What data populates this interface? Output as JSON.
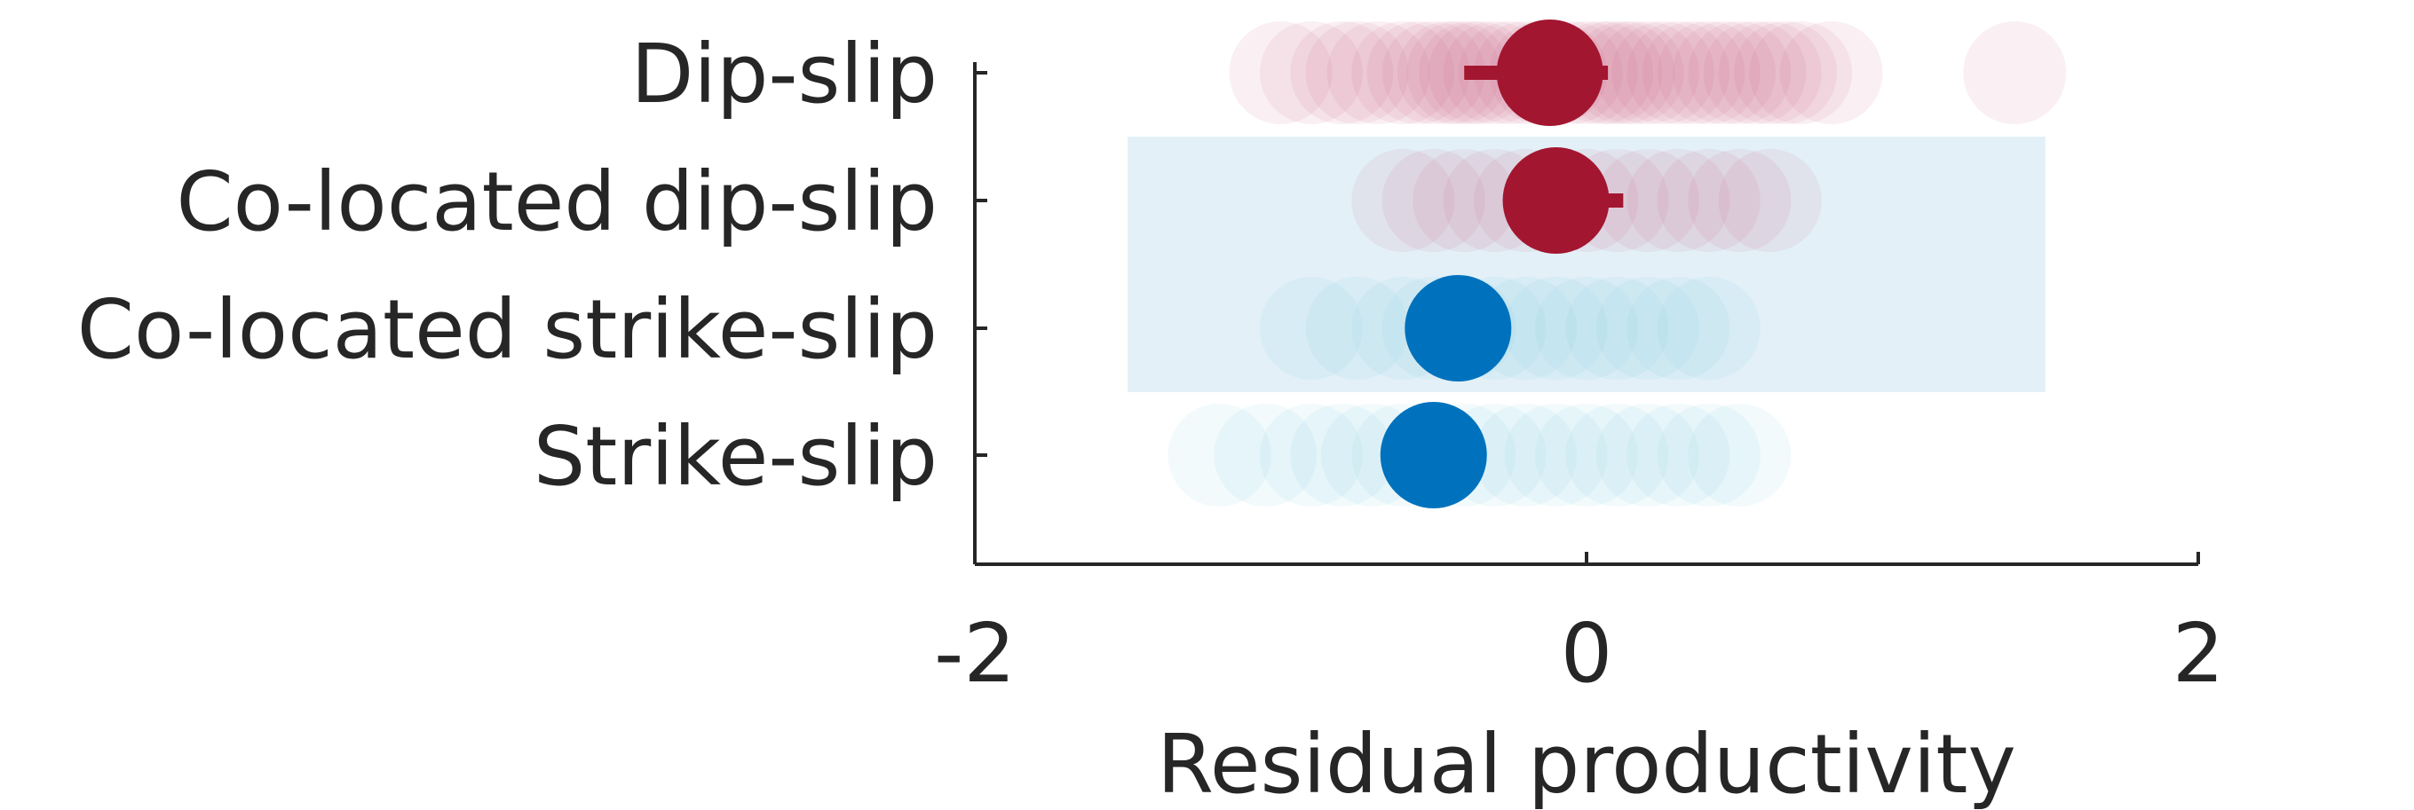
{
  "chart_data": {
    "type": "scatter",
    "xlabel": "Residual productivity",
    "xlim": [
      -2,
      2
    ],
    "xticks": [
      -2,
      0,
      2
    ],
    "categories": [
      "Dip-slip",
      "Co-located dip-slip",
      "Co-located strike-slip",
      "Strike-slip"
    ],
    "highlight_band": {
      "categories": [
        "Co-located dip-slip",
        "Co-located strike-slip"
      ],
      "x_range": [
        -1.5,
        1.5
      ],
      "color": "#e3f0f8"
    },
    "colors": {
      "dip": "#a31630",
      "strike": "#0072bd",
      "dip_faint": "#c9577a",
      "strike_faint": "#74c4e0",
      "axis": "#262626"
    },
    "series": [
      {
        "category": "Dip-slip",
        "color_key": "dip",
        "mean": -0.12,
        "ci": [
          -0.4,
          0.07
        ],
        "points": [
          -1.0,
          -0.9,
          -0.8,
          -0.75,
          -0.68,
          -0.6,
          -0.55,
          -0.5,
          -0.45,
          -0.42,
          -0.38,
          -0.35,
          -0.3,
          -0.25,
          -0.2,
          -0.15,
          -0.1,
          -0.05,
          0.0,
          0.05,
          0.08,
          0.12,
          0.15,
          0.2,
          0.25,
          0.3,
          0.35,
          0.4,
          0.45,
          0.5,
          0.55,
          0.6,
          0.65,
          0.7,
          0.8,
          1.4
        ]
      },
      {
        "category": "Co-located dip-slip",
        "color_key": "dip",
        "mean": -0.1,
        "ci": [
          -0.1,
          0.12
        ],
        "points": [
          -0.6,
          -0.5,
          -0.4,
          -0.3,
          -0.2,
          -0.1,
          0.0,
          0.1,
          0.2,
          0.3,
          0.4,
          0.5,
          0.6
        ]
      },
      {
        "category": "Co-located strike-slip",
        "color_key": "strike",
        "mean": -0.42,
        "ci": [
          -0.58,
          -0.42
        ],
        "points": [
          -0.9,
          -0.75,
          -0.6,
          -0.5,
          -0.4,
          -0.3,
          -0.2,
          -0.1,
          0.0,
          0.1,
          0.2,
          0.3,
          0.4
        ]
      },
      {
        "category": "Strike-slip",
        "color_key": "strike",
        "mean": -0.5,
        "ci": [
          -0.55,
          -0.35
        ],
        "points": [
          -1.2,
          -1.05,
          -0.9,
          -0.8,
          -0.7,
          -0.6,
          -0.5,
          -0.4,
          -0.3,
          -0.2,
          -0.1,
          0.0,
          0.1,
          0.2,
          0.3,
          0.4,
          0.5
        ]
      }
    ]
  }
}
